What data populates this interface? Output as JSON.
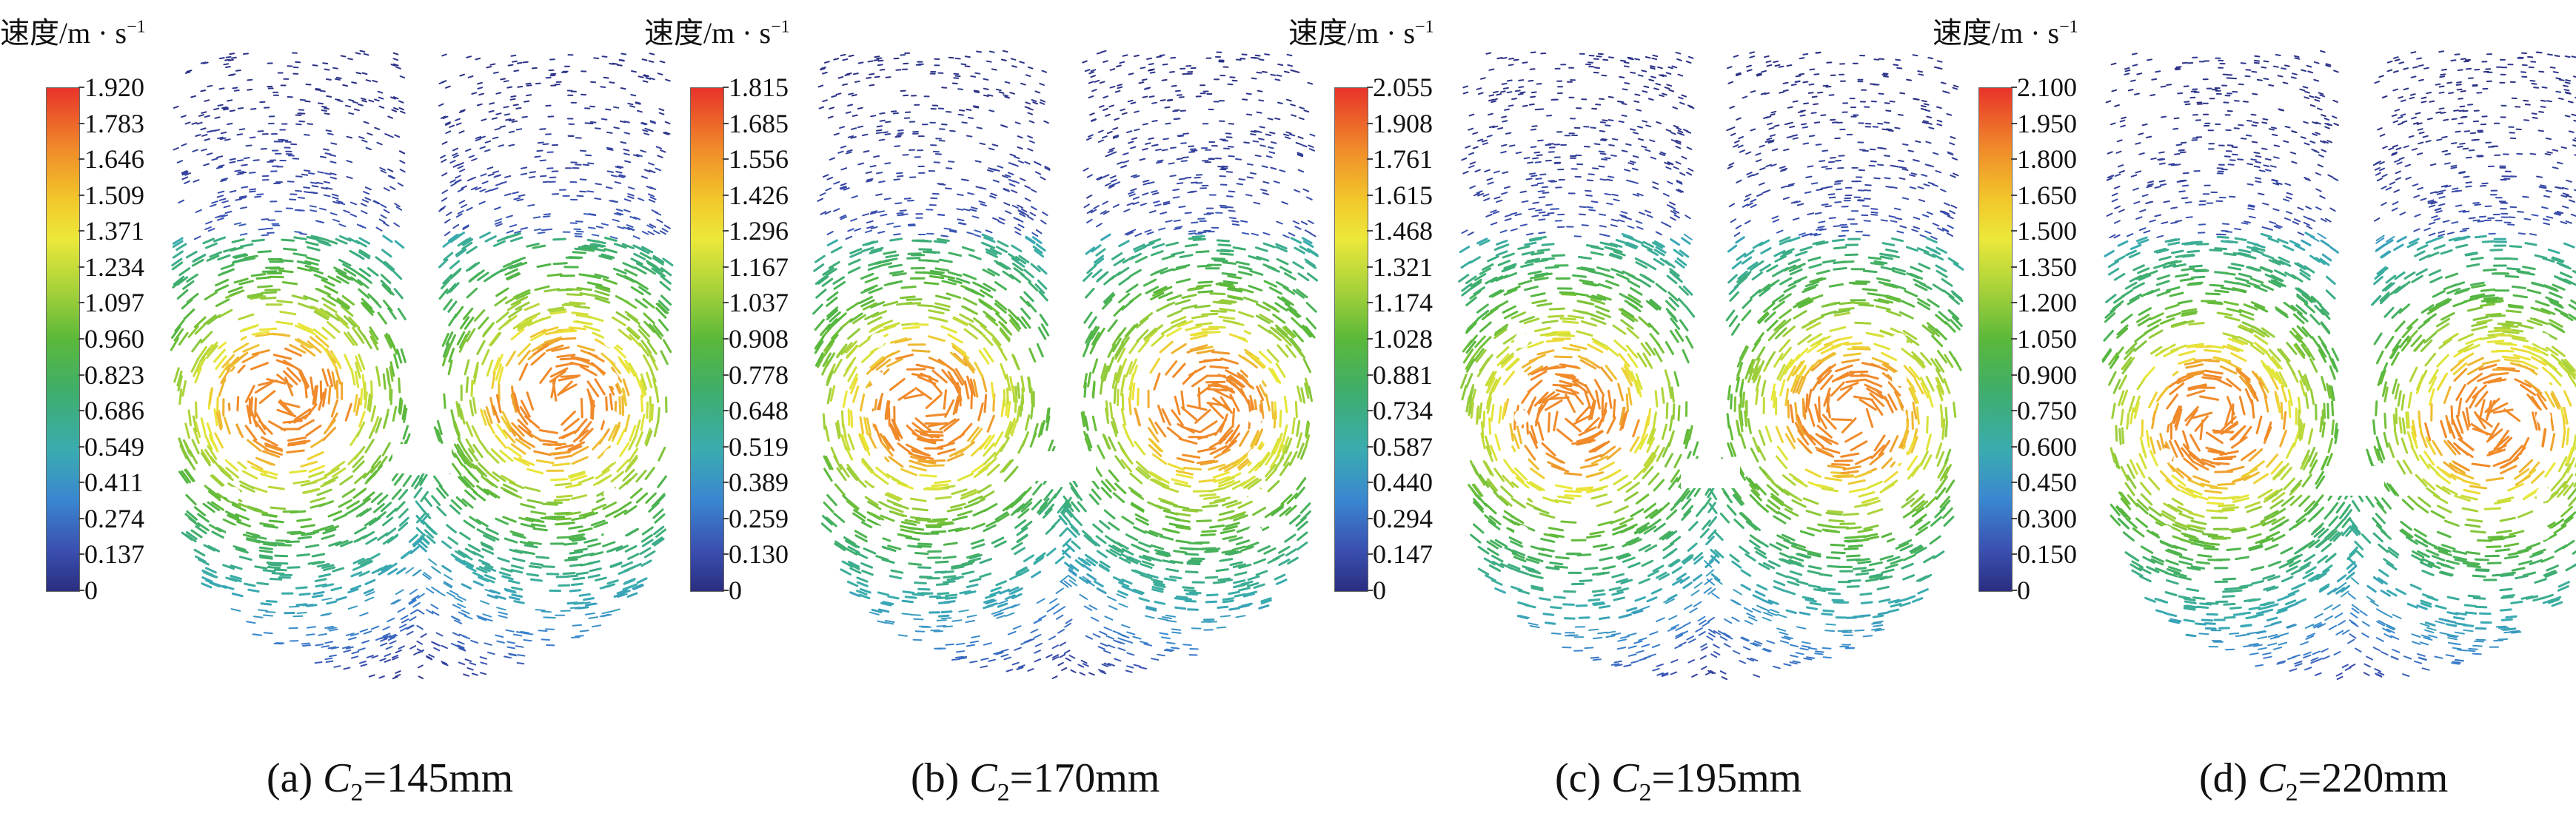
{
  "legend_title": "速度/m · s",
  "legend_exponent": "−1",
  "panels": [
    {
      "label": "(a)",
      "var": "C",
      "sub": "2",
      "value": "=145mm",
      "ticks": [
        "1.920",
        "1.783",
        "1.646",
        "1.509",
        "1.371",
        "1.234",
        "1.097",
        "0.960",
        "0.823",
        "0.686",
        "0.549",
        "0.411",
        "0.274",
        "0.137",
        "0"
      ]
    },
    {
      "label": "(b)",
      "var": "C",
      "sub": "2",
      "value": "=170mm",
      "ticks": [
        "1.815",
        "1.685",
        "1.556",
        "1.426",
        "1.296",
        "1.167",
        "1.037",
        "0.908",
        "0.778",
        "0.648",
        "0.519",
        "0.389",
        "0.259",
        "0.130",
        "0"
      ]
    },
    {
      "label": "(c)",
      "var": "C",
      "sub": "2",
      "value": "=195mm",
      "ticks": [
        "2.055",
        "1.908",
        "1.761",
        "1.615",
        "1.468",
        "1.321",
        "1.174",
        "1.028",
        "0.881",
        "0.734",
        "0.587",
        "0.440",
        "0.294",
        "0.147",
        "0"
      ]
    },
    {
      "label": "(d)",
      "var": "C",
      "sub": "2",
      "value": "=220mm",
      "ticks": [
        "2.100",
        "1.950",
        "1.800",
        "1.650",
        "1.500",
        "1.350",
        "1.200",
        "1.050",
        "0.900",
        "0.750",
        "0.600",
        "0.450",
        "0.300",
        "0.150",
        "0"
      ]
    }
  ],
  "colors": {
    "low": "#2a2e80",
    "mid": "#3aacb0",
    "high": "#e8332a"
  }
}
